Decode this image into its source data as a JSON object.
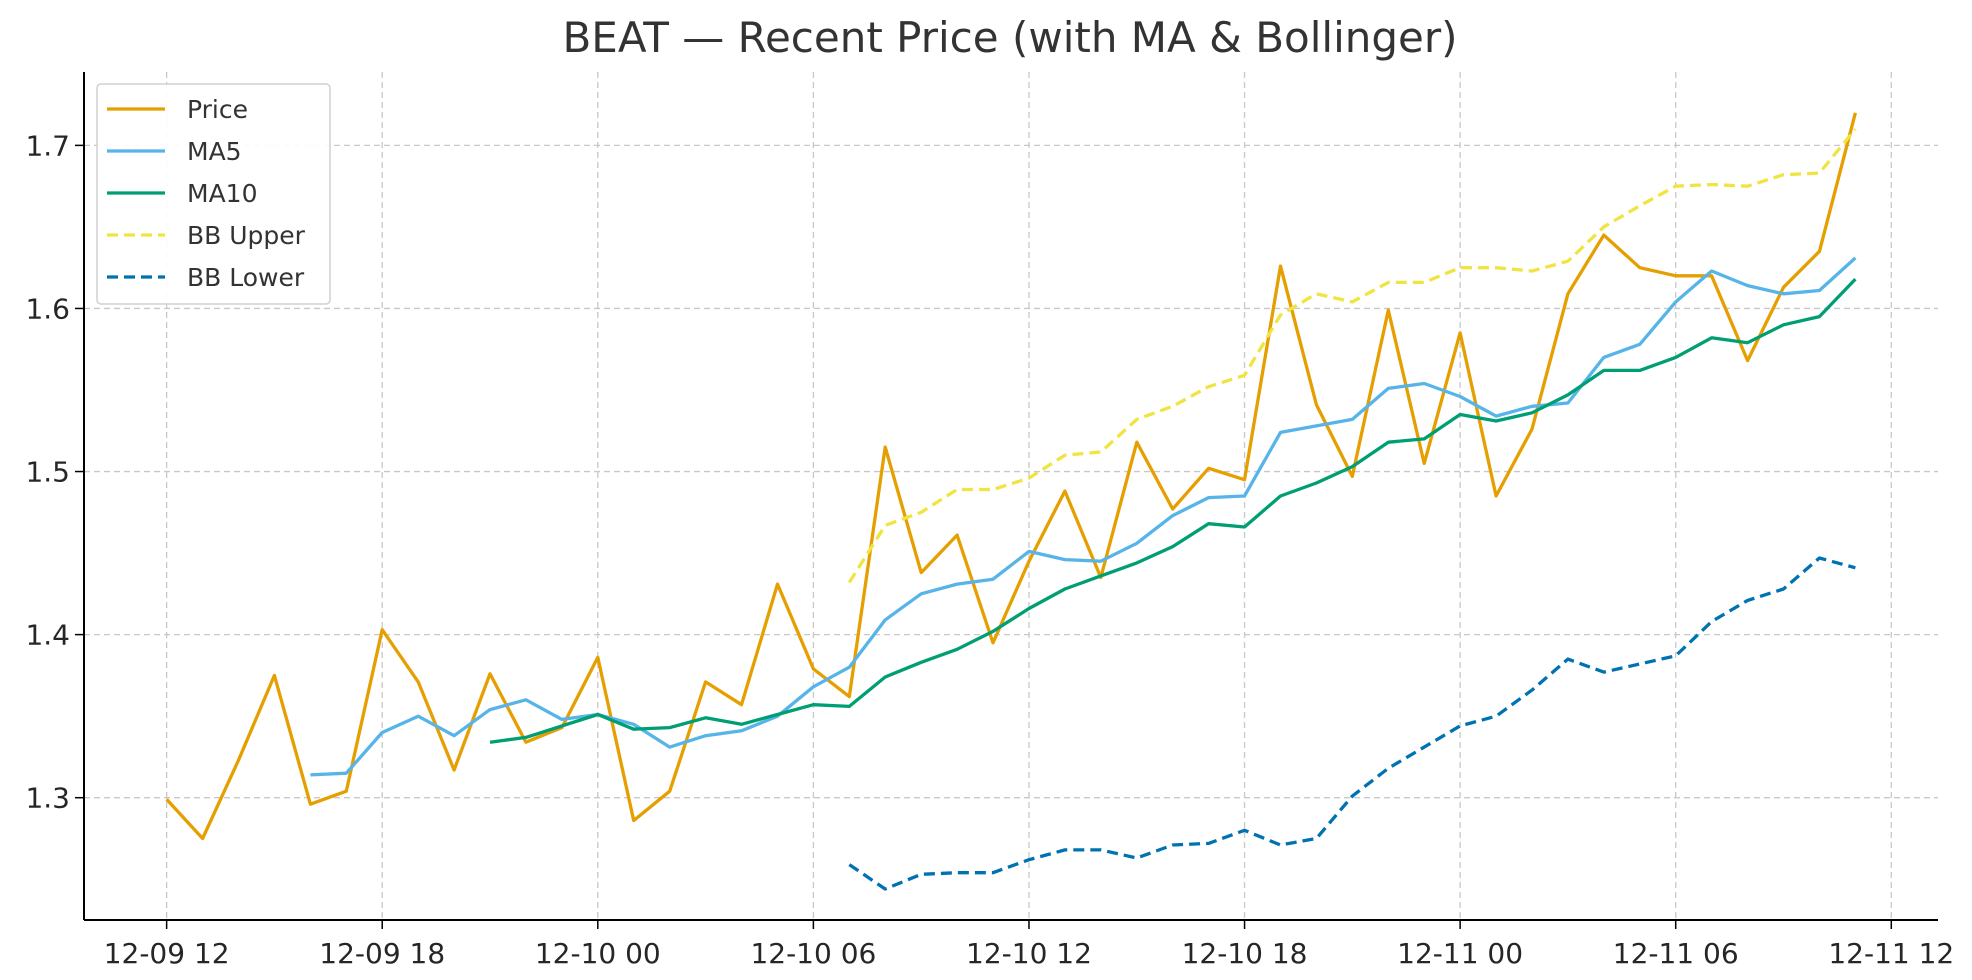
{
  "chart_data": {
    "type": "line",
    "title": "BEAT — Recent Price (with MA & Bollinger)",
    "xlabel": "",
    "ylabel": "",
    "ylim": [
      1.225,
      1.745
    ],
    "x_start_hours": 0,
    "x_step_hours": 1,
    "xlim_hours": [
      -2.3,
      49.3
    ],
    "x_ticks": [
      {
        "hours": 0,
        "label": "12-09 12"
      },
      {
        "hours": 6,
        "label": "12-09 18"
      },
      {
        "hours": 12,
        "label": "12-10 00"
      },
      {
        "hours": 18,
        "label": "12-10 06"
      },
      {
        "hours": 24,
        "label": "12-10 12"
      },
      {
        "hours": 30,
        "label": "12-10 18"
      },
      {
        "hours": 36,
        "label": "12-11 00"
      },
      {
        "hours": 42,
        "label": "12-11 06"
      },
      {
        "hours": 48,
        "label": "12-11 12"
      }
    ],
    "y_ticks": [
      {
        "value": 1.3,
        "label": "1.3"
      },
      {
        "value": 1.4,
        "label": "1.4"
      },
      {
        "value": 1.5,
        "label": "1.5"
      },
      {
        "value": 1.6,
        "label": "1.6"
      },
      {
        "value": 1.7,
        "label": "1.7"
      }
    ],
    "grid": true,
    "legend_position": "top-left",
    "series": [
      {
        "name": "Price",
        "color": "#E69F00",
        "dashed": false,
        "values": [
          1.299,
          1.275,
          1.323,
          1.375,
          1.296,
          1.304,
          1.403,
          1.371,
          1.317,
          1.376,
          1.334,
          1.343,
          1.386,
          1.286,
          1.304,
          1.371,
          1.357,
          1.431,
          1.379,
          1.362,
          1.515,
          1.438,
          1.461,
          1.395,
          1.445,
          1.488,
          1.435,
          1.518,
          1.477,
          1.502,
          1.495,
          1.626,
          1.541,
          1.497,
          1.599,
          1.505,
          1.585,
          1.485,
          1.526,
          1.609,
          1.645,
          1.625,
          1.62,
          1.62,
          1.568,
          1.613,
          1.635,
          1.72
        ]
      },
      {
        "name": "MA5",
        "color": "#56B4E9",
        "dashed": false,
        "values": [
          null,
          null,
          null,
          null,
          1.314,
          1.315,
          1.34,
          1.35,
          1.338,
          1.354,
          1.36,
          1.348,
          1.351,
          1.345,
          1.331,
          1.338,
          1.341,
          1.35,
          1.368,
          1.38,
          1.409,
          1.425,
          1.431,
          1.434,
          1.451,
          1.446,
          1.445,
          1.456,
          1.473,
          1.484,
          1.485,
          1.524,
          1.528,
          1.532,
          1.551,
          1.554,
          1.546,
          1.534,
          1.54,
          1.542,
          1.57,
          1.578,
          1.604,
          1.623,
          1.614,
          1.609,
          1.611,
          1.631
        ]
      },
      {
        "name": "MA10",
        "color": "#009E73",
        "dashed": false,
        "values": [
          null,
          null,
          null,
          null,
          null,
          null,
          null,
          null,
          null,
          1.334,
          1.337,
          1.344,
          1.351,
          1.342,
          1.343,
          1.349,
          1.345,
          1.351,
          1.357,
          1.356,
          1.374,
          1.383,
          1.391,
          1.402,
          1.416,
          1.428,
          1.436,
          1.444,
          1.454,
          1.468,
          1.466,
          1.485,
          1.493,
          1.503,
          1.518,
          1.52,
          1.535,
          1.531,
          1.536,
          1.547,
          1.562,
          1.562,
          1.57,
          1.582,
          1.579,
          1.59,
          1.595,
          1.618
        ]
      },
      {
        "name": "BB Upper",
        "color": "#F0E442",
        "dashed": true,
        "values": [
          null,
          null,
          null,
          null,
          null,
          null,
          null,
          null,
          null,
          null,
          null,
          null,
          null,
          null,
          null,
          null,
          null,
          null,
          null,
          1.432,
          1.467,
          1.475,
          1.489,
          1.489,
          1.496,
          1.51,
          1.512,
          1.532,
          1.54,
          1.552,
          1.559,
          1.596,
          1.609,
          1.604,
          1.616,
          1.616,
          1.625,
          1.625,
          1.623,
          1.629,
          1.65,
          1.663,
          1.675,
          1.676,
          1.675,
          1.682,
          1.683,
          1.71
        ]
      },
      {
        "name": "BB Lower",
        "color": "#0072B2",
        "dashed": true,
        "values": [
          null,
          null,
          null,
          null,
          null,
          null,
          null,
          null,
          null,
          null,
          null,
          null,
          null,
          null,
          null,
          null,
          null,
          null,
          null,
          1.259,
          1.244,
          1.253,
          1.254,
          1.254,
          1.262,
          1.268,
          1.268,
          1.263,
          1.271,
          1.272,
          1.28,
          1.271,
          1.275,
          1.301,
          1.318,
          1.331,
          1.344,
          1.35,
          1.366,
          1.385,
          1.377,
          1.382,
          1.387,
          1.408,
          1.421,
          1.428,
          1.447,
          1.441
        ]
      }
    ]
  }
}
